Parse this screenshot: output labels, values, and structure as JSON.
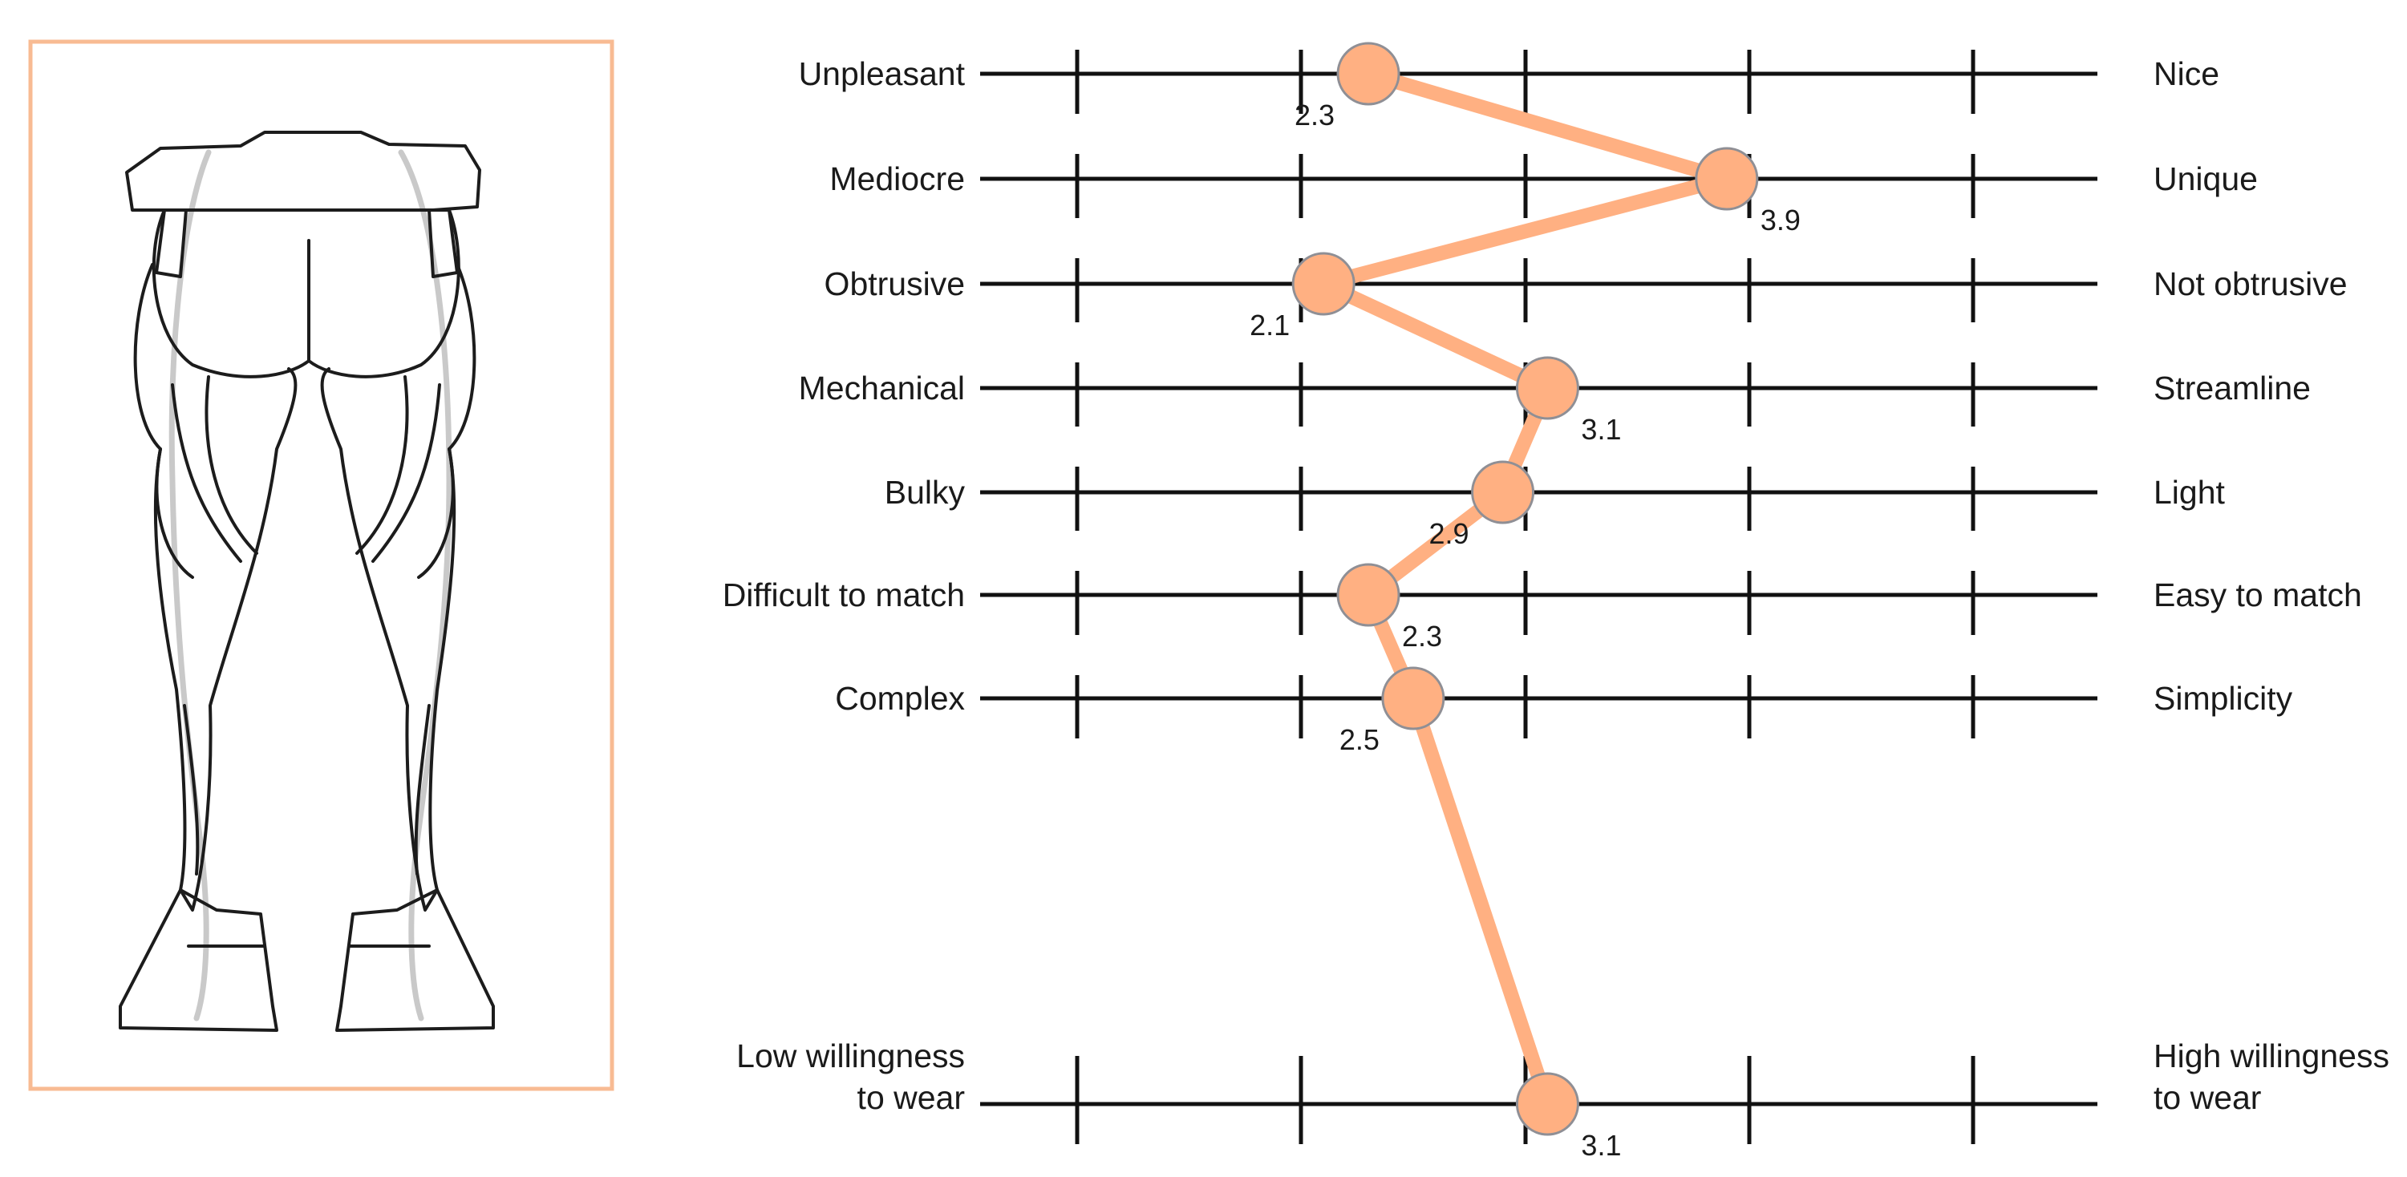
{
  "chart_data": {
    "type": "line",
    "scale_ticks": [
      1,
      2,
      3,
      4,
      5
    ],
    "xlim": [
      1,
      5
    ],
    "grid": true,
    "series_color": "#FFB082",
    "marker_edge_color": "#8f8f95",
    "frame_color": "#F8BB93",
    "items": [
      {
        "left": "Unpleasant",
        "right": "Nice",
        "value": 2.3,
        "label": "2.3",
        "label_pos": "below-left"
      },
      {
        "left": "Mediocre",
        "right": "Unique",
        "value": 3.9,
        "label": "3.9",
        "label_pos": "below-right"
      },
      {
        "left": "Obtrusive",
        "right": "Not obtrusive",
        "value": 2.1,
        "label": "2.1",
        "label_pos": "below-left"
      },
      {
        "left": "Mechanical",
        "right": "Streamline",
        "value": 3.1,
        "label": "3.1",
        "label_pos": "below-right"
      },
      {
        "left": "Bulky",
        "right": "Light",
        "value": 2.9,
        "label": "2.9",
        "label_pos": "below-left"
      },
      {
        "left": "Difficult to match",
        "right": "Easy to match",
        "value": 2.3,
        "label": "2.3",
        "label_pos": "below-right"
      },
      {
        "left": "Complex",
        "right": "Simplicity",
        "value": 2.5,
        "label": "2.5",
        "label_pos": "below-left"
      }
    ],
    "bottom_item": {
      "left": [
        "Low willingness",
        "to wear"
      ],
      "right": [
        "High willingness",
        "to wear"
      ],
      "value": 3.1,
      "label": "3.1",
      "label_pos": "below-right"
    }
  }
}
